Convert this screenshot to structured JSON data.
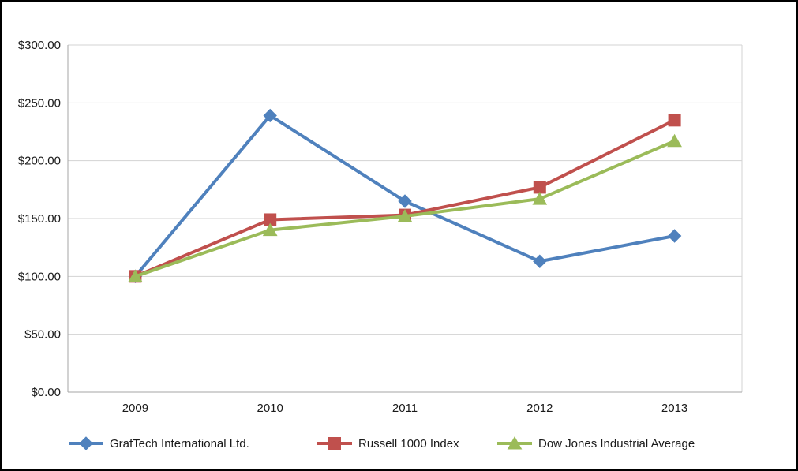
{
  "chart_data": {
    "type": "line",
    "title": "",
    "xlabel": "",
    "ylabel": "",
    "categories": [
      "2009",
      "2010",
      "2011",
      "2012",
      "2013"
    ],
    "series": [
      {
        "name": "GrafTech International Ltd.",
        "marker": "diamond",
        "color": "#4F81BD",
        "values": [
          100,
          239,
          165,
          113,
          135
        ]
      },
      {
        "name": "Russell 1000 Index",
        "marker": "square",
        "color": "#C0504D",
        "values": [
          100,
          149,
          153,
          177,
          235
        ]
      },
      {
        "name": "Dow Jones Industrial Average",
        "marker": "triangle",
        "color": "#9BBB59",
        "values": [
          100,
          140,
          152,
          167,
          217
        ]
      }
    ],
    "ylim": [
      0,
      300
    ],
    "yticks": [
      0,
      50,
      100,
      150,
      200,
      250,
      300
    ],
    "ytick_labels": [
      "$0.00",
      "$50.00",
      "$100.00",
      "$150.00",
      "$200.00",
      "$250.00",
      "$300.00"
    ],
    "grid": true,
    "legend_position": "bottom",
    "colors": {
      "grid": "#D3D3D3",
      "axis": "#A6A6A6",
      "plot_right_border": "#D3D3D3",
      "text": "#1a1a1a",
      "background": "#FFFFFF",
      "frame_border": "#000000"
    }
  }
}
